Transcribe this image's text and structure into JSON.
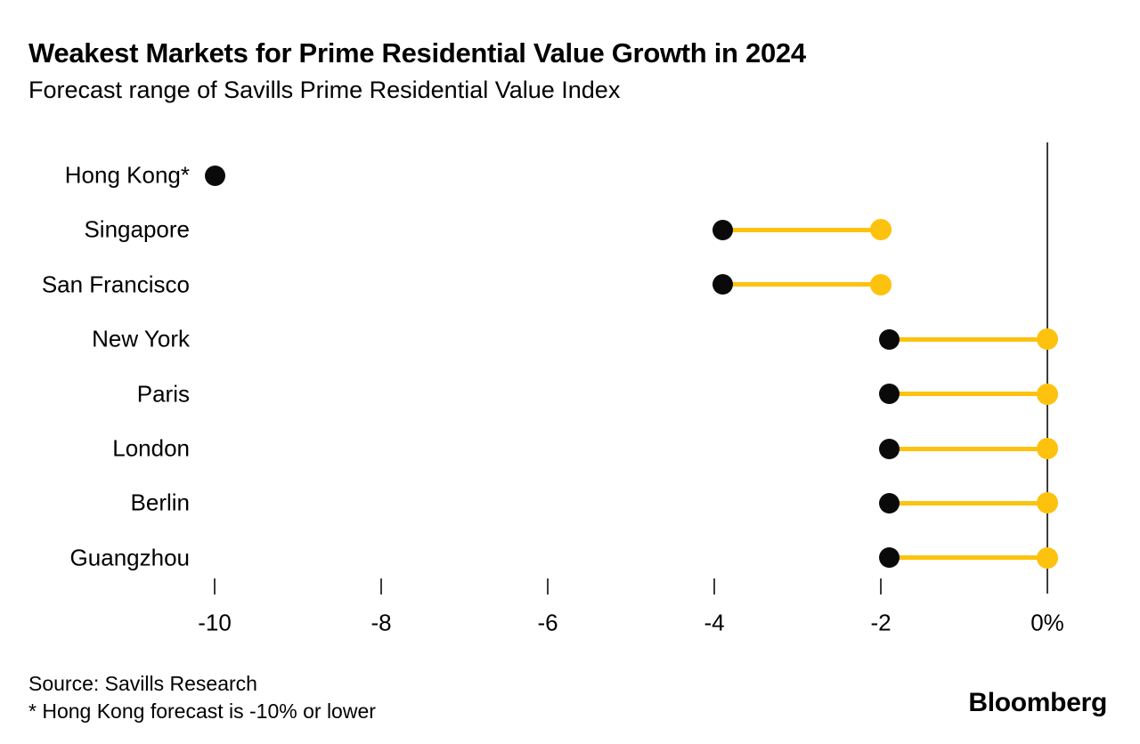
{
  "header": {
    "title": "Weakest Markets for Prime Residential Value Growth in 2024",
    "subtitle": "Forecast range of Savills Prime Residential Value Index"
  },
  "footer": {
    "source": "Source: Savills Research",
    "footnote": "* Hong Kong forecast is -10% or lower",
    "brand": "Bloomberg"
  },
  "colors": {
    "accent_yellow": "#fdc20e",
    "dot_black": "#0a0a0a",
    "axis_line": "#3c3c3c",
    "background": "#ffffff",
    "text": "#000000"
  },
  "chart_data": {
    "type": "scatter",
    "subtype": "dumbbell-range",
    "title": "Weakest Markets for Prime Residential Value Growth in 2024",
    "subtitle": "Forecast range of Savills Prime Residential Value Index",
    "xlabel": "",
    "ylabel": "",
    "unit": "%",
    "xlim": [
      -11.5,
      1.1
    ],
    "grid": false,
    "legend_position": "none",
    "categories": [
      "Hong Kong*",
      "Singapore",
      "San Francisco",
      "New York",
      "Paris",
      "London",
      "Berlin",
      "Guangzhou"
    ],
    "series": [
      {
        "name": "Forecast low (black dot)",
        "color": "#0a0a0a",
        "values": [
          -10,
          -3.9,
          -3.9,
          -1.9,
          -1.9,
          -1.9,
          -1.9,
          -1.9
        ]
      },
      {
        "name": "Forecast high (yellow dot)",
        "color": "#fdc20e",
        "values": [
          null,
          -2,
          -2,
          0,
          0,
          0,
          0,
          0
        ]
      }
    ],
    "x_ticks": [
      -10,
      -8,
      -6,
      -4,
      -2,
      0
    ],
    "x_tick_labels": [
      "-10",
      "-8",
      "-6",
      "-4",
      "-2",
      "0%"
    ],
    "annotations": [
      "* Hong Kong forecast is -10% or lower"
    ]
  }
}
